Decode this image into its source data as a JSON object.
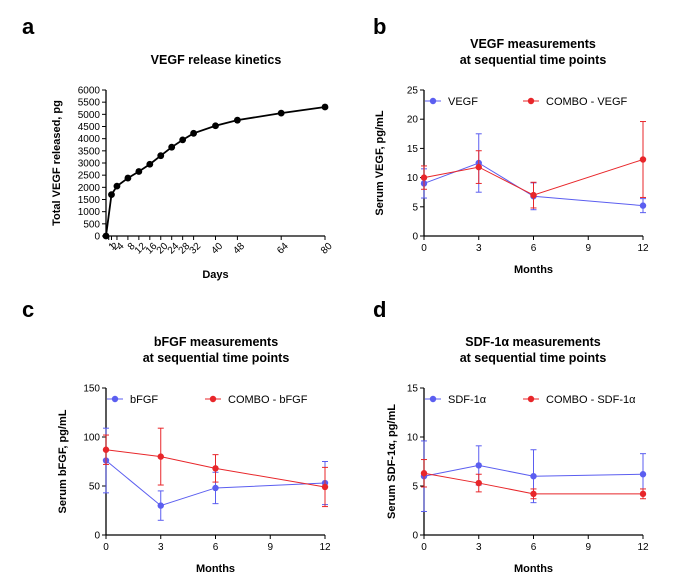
{
  "panels": [
    {
      "letter": "a"
    },
    {
      "letter": "b"
    },
    {
      "letter": "c"
    },
    {
      "letter": "d"
    }
  ],
  "chart_data": [
    {
      "type": "line",
      "letter": "a",
      "title": [
        "VEGF release kinetics"
      ],
      "xlabel": "Days",
      "ylabel": "Total VEGF released, pg",
      "xlim": [
        0,
        80
      ],
      "ylim": [
        0,
        6000
      ],
      "xticks": [
        1,
        2,
        4,
        8,
        12,
        16,
        20,
        24,
        28,
        32,
        40,
        48,
        64,
        80
      ],
      "yticks": [
        0,
        500,
        1000,
        1500,
        2000,
        2500,
        3000,
        3500,
        4000,
        4500,
        5000,
        5500,
        6000
      ],
      "rotated_xticks": true,
      "series": [
        {
          "name": "VEGF release",
          "color": "#000000",
          "x": [
            0,
            2,
            4,
            8,
            12,
            16,
            20,
            24,
            28,
            32,
            40,
            48,
            64,
            80
          ],
          "y": [
            0,
            1700,
            2050,
            2380,
            2650,
            2950,
            3300,
            3650,
            3950,
            4220,
            4530,
            4760,
            5050,
            5300
          ]
        }
      ]
    },
    {
      "type": "line",
      "letter": "b",
      "title": [
        "VEGF measurements",
        "at sequential time points"
      ],
      "xlabel": "Months",
      "ylabel": "Serum VEGF, pg/mL",
      "xlim": [
        0,
        12
      ],
      "ylim": [
        0,
        25
      ],
      "xticks": [
        0,
        3,
        6,
        9,
        12
      ],
      "yticks": [
        0,
        5,
        10,
        15,
        20,
        25
      ],
      "series": [
        {
          "name": "VEGF",
          "color": "#5b5ef0",
          "x": [
            0,
            3,
            6,
            12
          ],
          "y": [
            9.0,
            12.5,
            6.8,
            5.2
          ],
          "err": [
            2.5,
            5.0,
            2.3,
            1.2
          ]
        },
        {
          "name": "COMBO - VEGF",
          "color": "#e8262a",
          "x": [
            0,
            3,
            6,
            12
          ],
          "y": [
            10.0,
            11.8,
            7.0,
            13.1
          ],
          "err": [
            2.0,
            2.8,
            2.2,
            6.5
          ]
        }
      ]
    },
    {
      "type": "line",
      "letter": "c",
      "title": [
        "bFGF measurements",
        "at sequential time points"
      ],
      "xlabel": "Months",
      "ylabel": "Serum bFGF, pg/mL",
      "xlim": [
        0,
        12
      ],
      "ylim": [
        0,
        150
      ],
      "xticks": [
        0,
        3,
        6,
        9,
        12
      ],
      "yticks": [
        0,
        50,
        100,
        150
      ],
      "series": [
        {
          "name": "bFGF",
          "color": "#5b5ef0",
          "x": [
            0,
            3,
            6,
            12
          ],
          "y": [
            76,
            30,
            48,
            53
          ],
          "err": [
            33,
            15,
            16,
            22
          ]
        },
        {
          "name": "COMBO - bFGF",
          "color": "#e8262a",
          "x": [
            0,
            3,
            6,
            12
          ],
          "y": [
            87,
            80,
            68,
            49
          ],
          "err": [
            15,
            29,
            14,
            20
          ]
        }
      ]
    },
    {
      "type": "line",
      "letter": "d",
      "title": [
        "SDF-1α measurements",
        "at sequential time points"
      ],
      "xlabel": "Months",
      "ylabel": "Serum SDF-1α, pg/mL",
      "xlim": [
        0,
        12
      ],
      "ylim": [
        0,
        15
      ],
      "xticks": [
        0,
        3,
        6,
        9,
        12
      ],
      "yticks": [
        0,
        5,
        10,
        15
      ],
      "series": [
        {
          "name": "SDF-1α",
          "color": "#5b5ef0",
          "x": [
            0,
            3,
            6,
            12
          ],
          "y": [
            6.0,
            7.1,
            6.0,
            6.2
          ],
          "err": [
            3.6,
            2.0,
            2.7,
            2.1
          ]
        },
        {
          "name": "COMBO - SDF-1α",
          "color": "#e8262a",
          "x": [
            0,
            3,
            6,
            12
          ],
          "y": [
            6.3,
            5.3,
            4.2,
            4.2
          ],
          "err": [
            1.4,
            0.9,
            0.5,
            0.5
          ]
        }
      ]
    }
  ]
}
